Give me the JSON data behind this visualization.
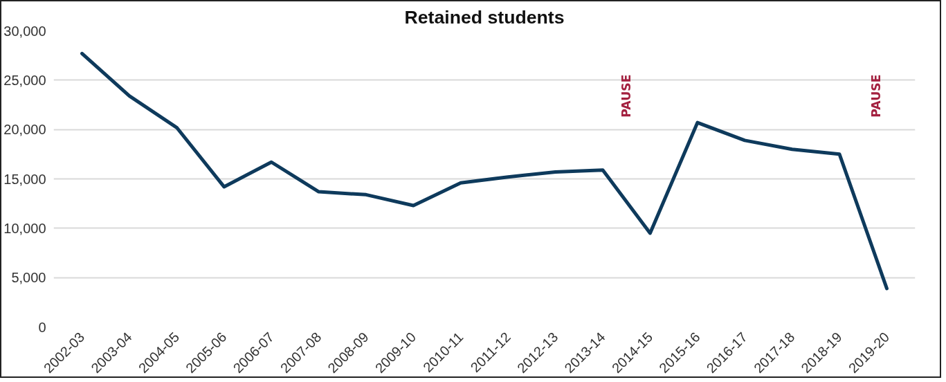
{
  "chart_data": {
    "type": "line",
    "title": "Retained students",
    "categories": [
      "2002-03",
      "2003-04",
      "2004-05",
      "2005-06",
      "2006-07",
      "2007-08",
      "2008-09",
      "2009-10",
      "2010-11",
      "2011-12",
      "2012-13",
      "2013-14",
      "2014-15",
      "2015-16",
      "2016-17",
      "2017-18",
      "2018-19",
      "2019-20"
    ],
    "series": [
      {
        "color": "#0e3a5c",
        "values": [
          27700,
          23400,
          20200,
          14200,
          16700,
          13700,
          13400,
          12300,
          14600,
          15200,
          15700,
          15900,
          9500,
          20700,
          18900,
          18000,
          17500,
          3900
        ]
      }
    ],
    "ylim": [
      0,
      30000
    ],
    "yticks": [
      {
        "value": 0,
        "label": "0"
      },
      {
        "value": 5000,
        "label": "5,000"
      },
      {
        "value": 10000,
        "label": "10,000"
      },
      {
        "value": 15000,
        "label": "15,000"
      },
      {
        "value": 20000,
        "label": "20,000"
      },
      {
        "value": 25000,
        "label": "25,000"
      },
      {
        "value": 30000,
        "label": "30,000"
      }
    ],
    "grid": "y",
    "marker": "none",
    "line_style": "solid",
    "annotations": [
      "PAUSE",
      "PAUSE"
    ]
  }
}
